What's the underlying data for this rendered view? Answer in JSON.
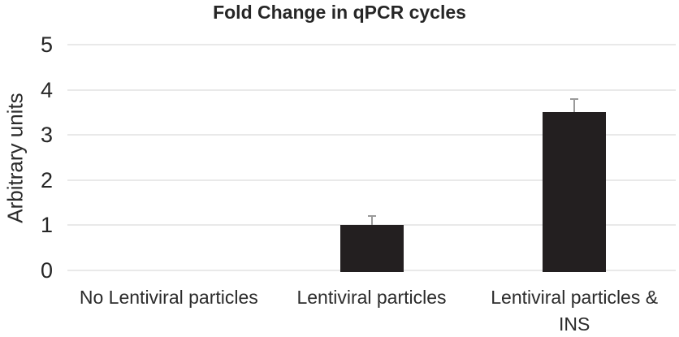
{
  "chart_data": {
    "type": "bar",
    "title": "Fold Change in qPCR cycles",
    "xlabel": "",
    "ylabel": "Arbitrary units",
    "categories": [
      "No Lentiviral particles",
      "Lentiviral particles",
      "Lentiviral particles & INS"
    ],
    "values": [
      0,
      1.0,
      3.5
    ],
    "error_plus": [
      0,
      0.2,
      0.3
    ],
    "ylim": [
      0,
      5
    ],
    "yticks": [
      0,
      1,
      2,
      3,
      4,
      5
    ],
    "grid": "horizontal-only",
    "legend": "none",
    "colors": {
      "bar_fill": "#231f20",
      "error_bar": "#9a9a9a",
      "gridline": "#e9e9e9",
      "title_text": "#262626",
      "axis_text": "#2b2b2b"
    }
  }
}
